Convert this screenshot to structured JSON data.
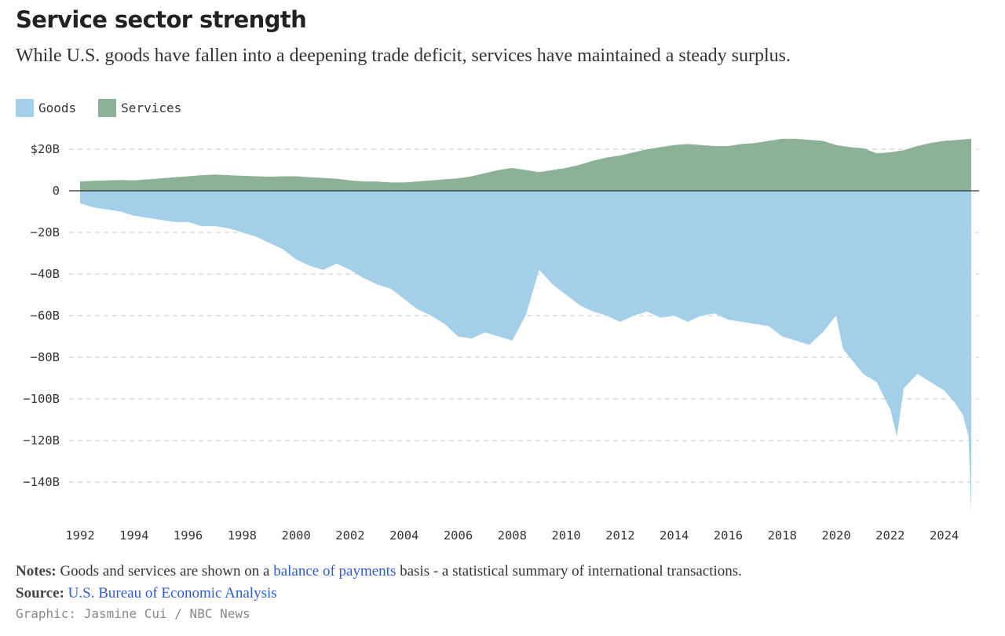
{
  "header": {
    "title": "Service sector strength",
    "subtitle": "While U.S. goods have fallen into a deepening trade deficit, services have maintained a steady surplus."
  },
  "footer": {
    "notes_label": "Notes:",
    "notes_text_1": " Goods and services are shown on a ",
    "notes_link": "balance of payments",
    "notes_text_2": " basis - a statistical summary of international transactions.",
    "source_label": "Source:",
    "source_link": "U.S. Bureau of Economic Analysis",
    "credit": "Graphic: Jasmine Cui / NBC News"
  },
  "colors": {
    "goods": "#a3cfe9",
    "services": "#8cb196",
    "zero_line": "#333333",
    "grid": "#c8c8c8",
    "link": "#2d5bd7"
  },
  "chart_data": {
    "type": "area",
    "title": "Service sector strength",
    "xlabel": "",
    "ylabel": "",
    "ylim": [
      -155,
      27
    ],
    "xlim": [
      1992,
      2025
    ],
    "grid": true,
    "legend_position": "top-left",
    "y_ticks": [
      {
        "value": 20,
        "label": "$20B"
      },
      {
        "value": 0,
        "label": "0"
      },
      {
        "value": -20,
        "label": "−20B"
      },
      {
        "value": -40,
        "label": "−40B"
      },
      {
        "value": -60,
        "label": "−60B"
      },
      {
        "value": -80,
        "label": "−80B"
      },
      {
        "value": -100,
        "label": "−100B"
      },
      {
        "value": -120,
        "label": "−120B"
      },
      {
        "value": -140,
        "label": "−140B"
      }
    ],
    "x_ticks": [
      "1992",
      "1994",
      "1996",
      "1998",
      "2000",
      "2002",
      "2004",
      "2006",
      "2008",
      "2010",
      "2012",
      "2014",
      "2016",
      "2018",
      "2020",
      "2022",
      "2024"
    ],
    "series": [
      {
        "name": "Goods",
        "x": [
          1992,
          1992.5,
          1993,
          1993.5,
          1994,
          1994.5,
          1995,
          1995.5,
          1996,
          1996.5,
          1997,
          1997.5,
          1998,
          1998.5,
          1999,
          1999.5,
          2000,
          2000.5,
          2001,
          2001.5,
          2002,
          2002.5,
          2003,
          2003.5,
          2004,
          2004.5,
          2005,
          2005.5,
          2006,
          2006.5,
          2007,
          2007.5,
          2008,
          2008.5,
          2009,
          2009.5,
          2010,
          2010.5,
          2011,
          2011.5,
          2012,
          2012.5,
          2013,
          2013.5,
          2014,
          2014.5,
          2015,
          2015.5,
          2016,
          2016.5,
          2017,
          2017.5,
          2018,
          2018.5,
          2019,
          2019.5,
          2020,
          2020.25,
          2020.5,
          2021,
          2021.5,
          2022,
          2022.25,
          2022.5,
          2023,
          2023.5,
          2024,
          2024.4,
          2024.7,
          2024.9,
          2025.0
        ],
        "values": [
          -6,
          -8,
          -9,
          -10,
          -12,
          -13,
          -14,
          -15,
          -15,
          -17,
          -17,
          -18,
          -20,
          -22,
          -25,
          -28,
          -33,
          -36,
          -38,
          -35,
          -38,
          -42,
          -45,
          -47,
          -52,
          -57,
          -60,
          -64,
          -70,
          -71,
          -68,
          -70,
          -72,
          -60,
          -38,
          -45,
          -50,
          -55,
          -58,
          -60,
          -63,
          -60,
          -58,
          -61,
          -60,
          -63,
          -60,
          -59,
          -62,
          -63,
          -64,
          -65,
          -70,
          -72,
          -74,
          -68,
          -60,
          -76,
          -80,
          -88,
          -92,
          -105,
          -118,
          -95,
          -88,
          -92,
          -96,
          -102,
          -108,
          -118,
          -155
        ]
      },
      {
        "name": "Services",
        "x": [
          1992,
          1992.5,
          1993,
          1993.5,
          1994,
          1994.5,
          1995,
          1995.5,
          1996,
          1996.5,
          1997,
          1997.5,
          1998,
          1998.5,
          1999,
          1999.5,
          2000,
          2000.5,
          2001,
          2001.5,
          2002,
          2002.5,
          2003,
          2003.5,
          2004,
          2004.5,
          2005,
          2005.5,
          2006,
          2006.5,
          2007,
          2007.5,
          2008,
          2008.5,
          2009,
          2009.5,
          2010,
          2010.5,
          2011,
          2011.5,
          2012,
          2012.5,
          2013,
          2013.5,
          2014,
          2014.5,
          2015,
          2015.5,
          2016,
          2016.5,
          2017,
          2017.5,
          2018,
          2018.5,
          2019,
          2019.5,
          2020,
          2020.5,
          2021,
          2021.5,
          2022,
          2022.5,
          2023,
          2023.5,
          2024,
          2024.5,
          2025.0
        ],
        "values": [
          4.5,
          4.8,
          5,
          5.2,
          5,
          5.5,
          6,
          6.5,
          7,
          7.5,
          7.8,
          7.5,
          7.2,
          7,
          6.8,
          7,
          7,
          6.5,
          6.2,
          5.8,
          5,
          4.5,
          4.5,
          4,
          4,
          4.5,
          5,
          5.5,
          6,
          7,
          8.5,
          10,
          11,
          10,
          9,
          10,
          11,
          12.5,
          14.5,
          16,
          17,
          18.5,
          20,
          21,
          22,
          22.5,
          22,
          21.5,
          21.5,
          22.5,
          23,
          24,
          25,
          25,
          24.5,
          24,
          22,
          21,
          20.5,
          18,
          18.5,
          19.5,
          21.5,
          23,
          24,
          24.5,
          25
        ]
      }
    ]
  }
}
